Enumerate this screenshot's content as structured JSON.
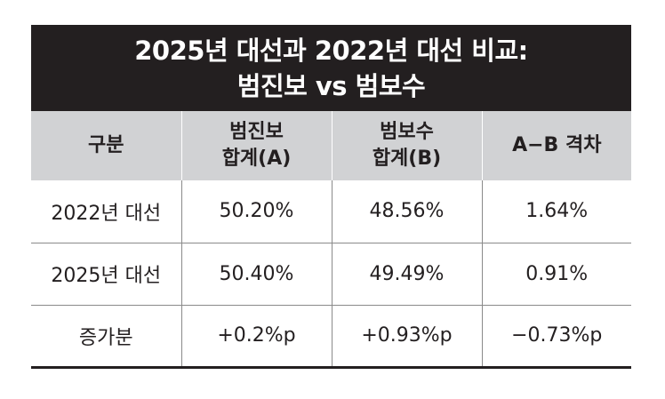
{
  "title": {
    "line1": "2025년 대선과 2022년 대선 비교:",
    "line2": "범진보 vs 범보수"
  },
  "header": {
    "col1": "구분",
    "col2_line1": "범진보",
    "col2_line2": "합계(A)",
    "col3_line1": "범보수",
    "col3_line2": "합계(B)",
    "col4": "A−B 격차"
  },
  "rows": [
    {
      "label": "2022년 대선",
      "a": "50.20%",
      "b": "48.56%",
      "gap": "1.64%"
    },
    {
      "label": "2025년 대선",
      "a": "50.40%",
      "b": "49.49%",
      "gap": "0.91%"
    },
    {
      "label": "증가분",
      "a": "+0.2%p",
      "b": "+0.93%p",
      "gap": "−0.73%p"
    }
  ]
}
